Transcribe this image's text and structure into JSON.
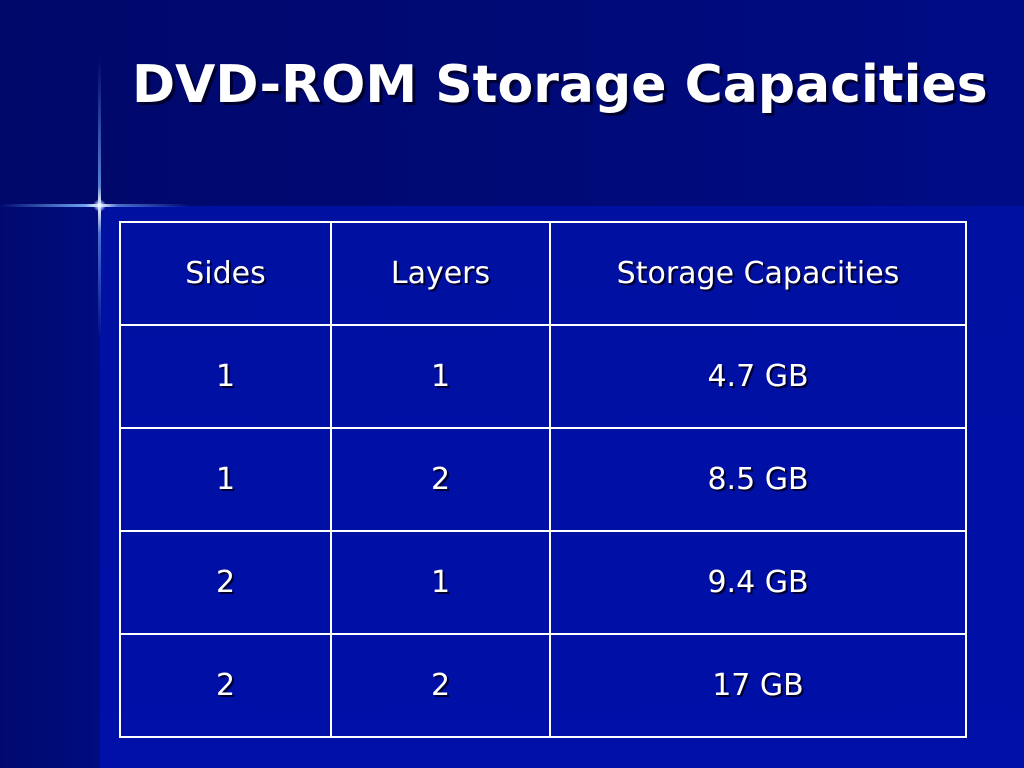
{
  "slide": {
    "title": "DVD-ROM Storage Capacities"
  },
  "table": {
    "headers": [
      "Sides",
      "Layers",
      "Storage Capacities"
    ],
    "rows": [
      [
        "1",
        "1",
        "4.7 GB"
      ],
      [
        "1",
        "2",
        "8.5 GB"
      ],
      [
        "2",
        "1",
        "9.4 GB"
      ],
      [
        "2",
        "2",
        "17 GB"
      ]
    ]
  },
  "colors": {
    "background": "#0010a8",
    "text": "#ffffff",
    "grid": "#ffffff"
  }
}
